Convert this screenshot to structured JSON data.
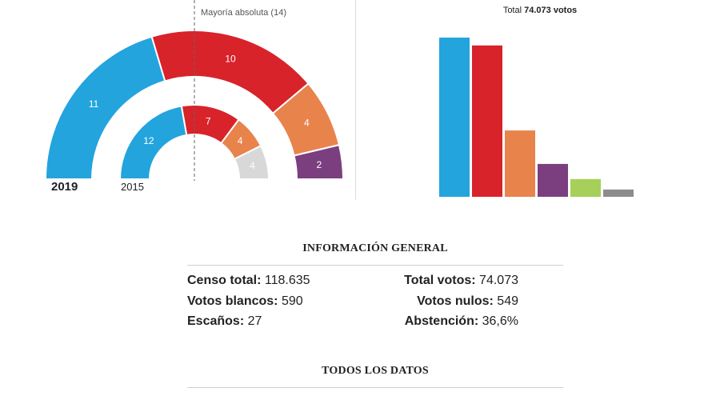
{
  "charts": {
    "seats": {
      "majority_label": "Mayoría absoluta (14)",
      "year_current": "2019",
      "year_previous": "2015"
    },
    "votes": {
      "total_prefix": "Total",
      "total_value": "74.073 votos"
    }
  },
  "chart_data": [
    {
      "type": "pie",
      "subtype": "half-donut",
      "label": "2019",
      "categories": [
        "",
        "",
        "",
        ""
      ],
      "values": [
        11,
        10,
        4,
        2
      ],
      "colors": [
        "#23a4dd",
        "#d8232a",
        "#e8834c",
        "#7b3f7f"
      ]
    },
    {
      "type": "pie",
      "subtype": "half-donut",
      "label": "2015",
      "categories": [
        "",
        "",
        "",
        ""
      ],
      "values": [
        12,
        7,
        4,
        4
      ],
      "colors": [
        "#23a4dd",
        "#d8232a",
        "#e8834c",
        "#d8d8d8"
      ]
    },
    {
      "type": "bar",
      "categories": [
        "",
        "",
        "",
        "",
        "",
        ""
      ],
      "values": [
        30500,
        29000,
        12700,
        6300,
        3400,
        1400
      ],
      "colors": [
        "#23a4dd",
        "#d8232a",
        "#e8834c",
        "#7b3f7f",
        "#a6d05a",
        "#8c8c8c"
      ]
    }
  ],
  "info": {
    "title": "INFORMACIÓN GENERAL",
    "censo_label": "Censo total:",
    "censo_value": " 118.635",
    "total_votos_label": "Total votos:",
    "total_votos_value": " 74.073",
    "blancos_label": "Votos blancos:",
    "blancos_value": " 590",
    "nulos_label": "Votos nulos:",
    "nulos_value": " 549",
    "escanos_label": "Escaños:",
    "escanos_value": " 27",
    "abstencion_label": "Abstención:",
    "abstencion_value": " 36,6%",
    "all_data_title": "TODOS LOS DATOS"
  }
}
